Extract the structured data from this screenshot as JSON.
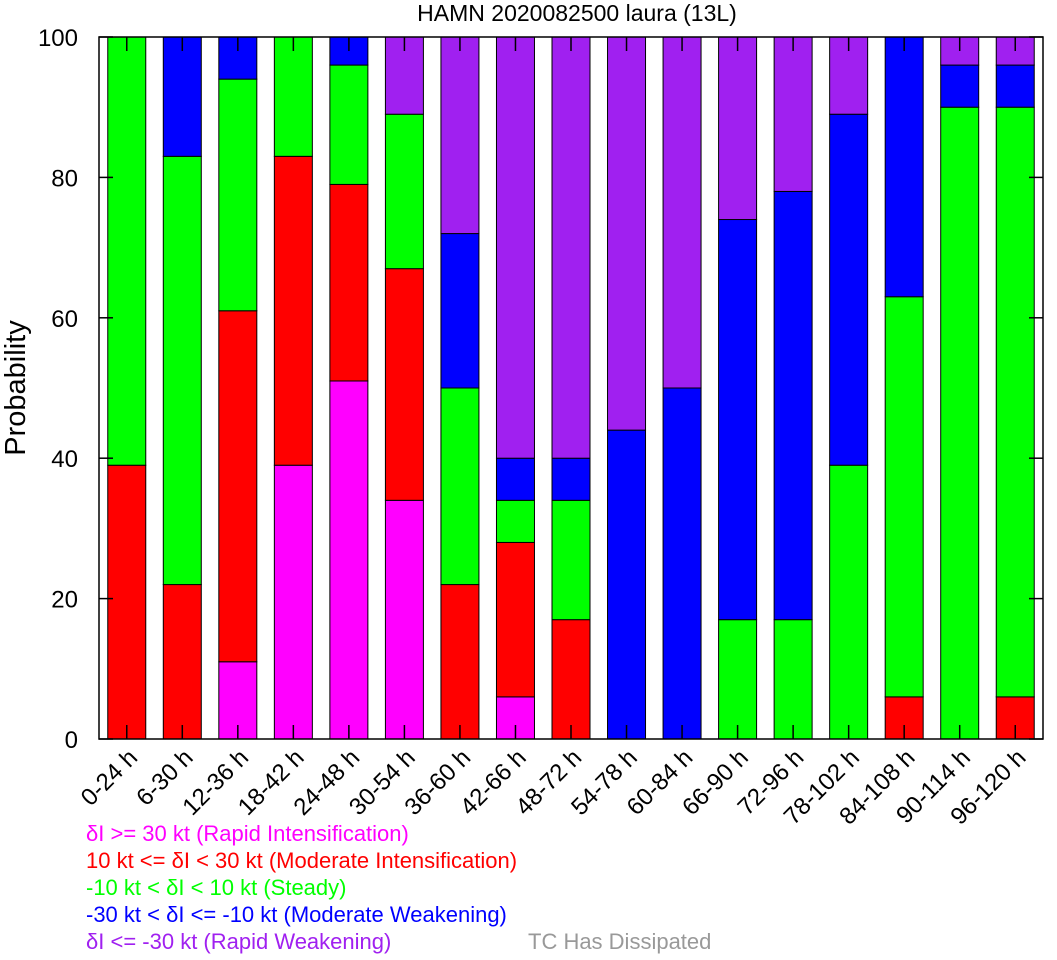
{
  "chart_data": {
    "type": "bar",
    "stacked": true,
    "title": "HAMN 2020082500 laura (13L)",
    "ylabel": "Probability",
    "xlabel": "",
    "ylim": [
      0,
      100
    ],
    "yticks": [
      0,
      20,
      40,
      60,
      80,
      100
    ],
    "grid": false,
    "categories": [
      "0-24 h",
      "6-30 h",
      "12-36 h",
      "18-42 h",
      "24-48 h",
      "30-54 h",
      "36-60 h",
      "42-66 h",
      "48-72 h",
      "54-78 h",
      "60-84 h",
      "66-90 h",
      "72-96 h",
      "78-102 h",
      "84-108 h",
      "90-114 h",
      "96-120 h"
    ],
    "series": [
      {
        "name": "δI >= 30 kt (Rapid Intensification)",
        "color": "#ff00ff",
        "values": [
          0,
          0,
          11,
          39,
          51,
          34,
          0,
          6,
          0,
          0,
          0,
          0,
          0,
          0,
          0,
          0,
          0
        ]
      },
      {
        "name": "10 kt <= δI < 30 kt (Moderate Intensification)",
        "color": "#ff0000",
        "values": [
          39,
          22,
          50,
          44,
          28,
          33,
          22,
          22,
          17,
          0,
          0,
          0,
          0,
          0,
          6,
          0,
          6
        ]
      },
      {
        "name": "-10 kt < δI < 10 kt (Steady)",
        "color": "#00ff00",
        "values": [
          61,
          61,
          33,
          17,
          17,
          22,
          28,
          6,
          17,
          0,
          0,
          17,
          17,
          39,
          57,
          90,
          84
        ]
      },
      {
        "name": "-30 kt < δI <= -10 kt (Moderate Weakening)",
        "color": "#0000ff",
        "values": [
          0,
          17,
          6,
          0,
          4,
          0,
          22,
          6,
          6,
          44,
          50,
          57,
          61,
          50,
          37,
          6,
          6
        ]
      },
      {
        "name": "δI <= -30 kt (Rapid Weakening)",
        "color": "#a020f0",
        "values": [
          0,
          0,
          0,
          0,
          0,
          11,
          28,
          60,
          60,
          56,
          50,
          26,
          22,
          11,
          0,
          4,
          4
        ]
      }
    ],
    "dissipated_label": "TC Has Dissipated",
    "dissipated_color": "#999999",
    "legend_position": "bottom-left"
  }
}
